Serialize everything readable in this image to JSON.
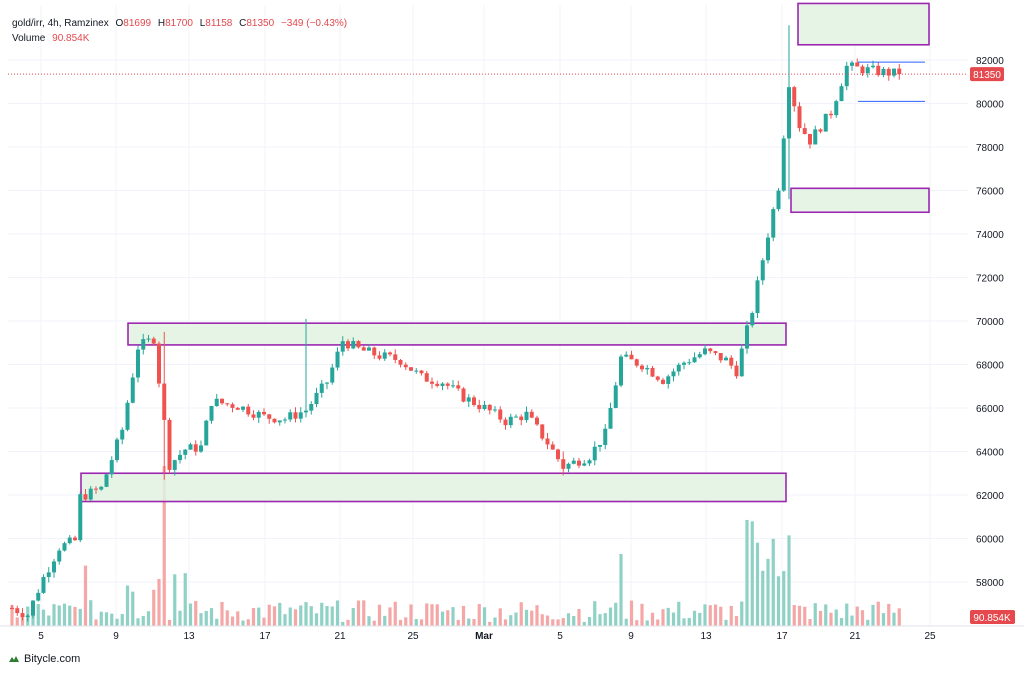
{
  "legend": {
    "symbol": "gold/irr, 4h, Ramzinex",
    "o_label": "O",
    "o_value": "81699",
    "h_label": "H",
    "h_value": "81700",
    "l_label": "L",
    "l_value": "81158",
    "c_label": "C",
    "c_value": "81350",
    "change": "−349 (−0.43%)",
    "volume_label": "Volume",
    "volume_value": "90.854K"
  },
  "footer": {
    "brand": "Bitycle.com"
  },
  "colors": {
    "up": "#26a69a",
    "down": "#ef5350",
    "up_volume": "#8fd1c5",
    "down_volume": "#f4a7a6",
    "zone_fill": "#e0f2e1",
    "zone_border": "#9c27b0",
    "grid": "#f0f3fa",
    "price_tag": "#e5484d",
    "level_line": "#2962ff"
  },
  "chart_data": {
    "type": "candlestick",
    "timeframe": "4h",
    "yaxis_ticks": [
      58000,
      60000,
      62000,
      64000,
      66000,
      68000,
      70000,
      72000,
      74000,
      76000,
      78000,
      80000,
      82000
    ],
    "xaxis_ticks": [
      "5",
      "9",
      "13",
      "17",
      "21",
      "25",
      "Mar",
      "5",
      "9",
      "13",
      "17",
      "21",
      "25"
    ],
    "ylim": [
      56300,
      84600
    ],
    "last_price": 81350,
    "last_volume": "90.854K",
    "price_path": [
      [
        0,
        56800
      ],
      [
        3,
        56500
      ],
      [
        6,
        58200
      ],
      [
        9,
        59600
      ],
      [
        12,
        59900
      ],
      [
        13,
        61900
      ],
      [
        17,
        62300
      ],
      [
        21,
        65000
      ],
      [
        24,
        68800
      ],
      [
        27,
        69200
      ],
      [
        30,
        63400
      ],
      [
        33,
        64100
      ],
      [
        36,
        64200
      ],
      [
        38,
        66300
      ],
      [
        43,
        66100
      ],
      [
        48,
        65600
      ],
      [
        52,
        65500
      ],
      [
        56,
        65900
      ],
      [
        60,
        67200
      ],
      [
        63,
        69100
      ],
      [
        66,
        68700
      ],
      [
        70,
        68400
      ],
      [
        74,
        68200
      ],
      [
        78,
        67400
      ],
      [
        82,
        67200
      ],
      [
        86,
        66500
      ],
      [
        90,
        66000
      ],
      [
        94,
        65400
      ],
      [
        98,
        65700
      ],
      [
        102,
        64400
      ],
      [
        105,
        63300
      ],
      [
        110,
        63800
      ],
      [
        113,
        64800
      ],
      [
        116,
        68300
      ],
      [
        120,
        68000
      ],
      [
        124,
        67300
      ],
      [
        128,
        68100
      ],
      [
        132,
        68600
      ],
      [
        136,
        68200
      ],
      [
        138,
        67700
      ],
      [
        141,
        70500
      ],
      [
        144,
        74000
      ],
      [
        146,
        76200
      ],
      [
        148,
        81000
      ],
      [
        150,
        79000
      ],
      [
        152,
        78300
      ],
      [
        156,
        79600
      ],
      [
        159,
        81700
      ],
      [
        164,
        81500
      ],
      [
        169,
        81350
      ]
    ],
    "zones": [
      {
        "from_index": 27,
        "to_index": 169,
        "low": 68900,
        "high": 69900
      },
      {
        "from_index": 13,
        "to_index": 169,
        "low": 61700,
        "high": 63000
      },
      {
        "from_index": 145,
        "to_index": 165,
        "low": 75000,
        "high": 76100
      },
      {
        "from_index": 146,
        "to_index": 165,
        "low": 82700,
        "high": 84600
      }
    ],
    "levels": [
      {
        "from_index": 157,
        "to_index": 172,
        "value": 81900
      },
      {
        "from_index": 157,
        "to_index": 172,
        "value": 80100
      }
    ]
  }
}
